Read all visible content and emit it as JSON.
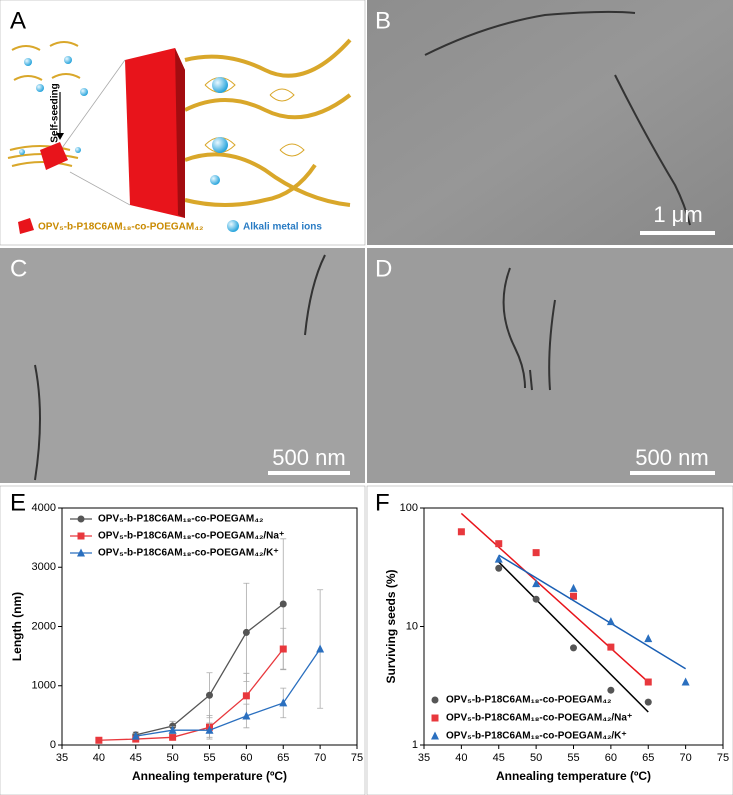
{
  "panel_labels": [
    "A",
    "B",
    "C",
    "D",
    "E",
    "F"
  ],
  "scale_bars": [
    "1 μm",
    "500 nm",
    "500 nm"
  ],
  "schematic": {
    "step": "Self-seeding",
    "legend_polymer": "OPV₅-b-P18C6AM₁₈-co-POEGAM₄₂",
    "legend_ions": "Alkali metal ions"
  },
  "chart_data": [
    {
      "type": "line",
      "xlabel": "Annealing temperature (ºC)",
      "ylabel": "Length (nm)",
      "xlim": [
        35,
        75
      ],
      "xticks": [
        35,
        40,
        45,
        50,
        55,
        60,
        65,
        70,
        75
      ],
      "ylim": [
        0,
        4000
      ],
      "yticks": [
        0,
        1000,
        2000,
        3000,
        4000
      ],
      "legend": "upper left",
      "series": [
        {
          "name": "OPV₅-b-P18C6AM₁₈-co-POEGAM₄₂",
          "color": "#555555",
          "marker": "circle",
          "x": [
            45,
            50,
            55,
            60,
            65
          ],
          "values": [
            170,
            320,
            840,
            1900,
            2380
          ],
          "errors": [
            50,
            80,
            380,
            830,
            1100
          ]
        },
        {
          "name": "OPV₅-b-P18C6AM₁₈-co-POEGAM₄₂/Na⁺",
          "color": "#e8383d",
          "marker": "square",
          "x": [
            40,
            45,
            50,
            55,
            60,
            65
          ],
          "values": [
            80,
            100,
            130,
            300,
            830,
            1620
          ],
          "errors": [
            20,
            30,
            40,
            200,
            380,
            350
          ]
        },
        {
          "name": "OPV₅-b-P18C6AM₁₈-co-POEGAM₄₂/K⁺",
          "color": "#2a6fbf",
          "marker": "triangle",
          "x": [
            45,
            50,
            55,
            60,
            65,
            70
          ],
          "values": [
            150,
            250,
            250,
            490,
            710,
            1620
          ],
          "errors": [
            40,
            60,
            120,
            200,
            250,
            1000
          ]
        }
      ]
    },
    {
      "type": "scatter",
      "xlabel": "Annealing temperature (ºC)",
      "ylabel": "Surviving seeds (%)",
      "xlim": [
        35,
        75
      ],
      "xticks": [
        35,
        40,
        45,
        50,
        55,
        60,
        65,
        70,
        75
      ],
      "ylim": [
        1,
        100
      ],
      "yticks": [
        1,
        10,
        100
      ],
      "log_y": true,
      "legend": "lower left",
      "series": [
        {
          "name": "OPV₅-b-P18C6AM₁₈-co-POEGAM₄₂",
          "color": "#555555",
          "line_color": "#000000",
          "marker": "circle",
          "x": [
            45,
            50,
            55,
            60,
            65
          ],
          "values": [
            31,
            17,
            6.6,
            2.9,
            2.3
          ],
          "fit": {
            "x": [
              45,
              65
            ],
            "values": [
              35,
              1.9
            ]
          }
        },
        {
          "name": "OPV₅-b-P18C6AM₁₈-co-POEGAM₄₂/Na⁺",
          "color": "#e8383d",
          "line_color": "#e8141b",
          "marker": "square",
          "x": [
            40,
            45,
            50,
            55,
            60,
            65
          ],
          "values": [
            63,
            50,
            42,
            18,
            6.7,
            3.4
          ],
          "fit": {
            "x": [
              40,
              65
            ],
            "values": [
              90,
              3.4
            ]
          }
        },
        {
          "name": "OPV₅-b-P18C6AM₁₈-co-POEGAM₄₂/K⁺",
          "color": "#2a6fbf",
          "line_color": "#1a5fb4",
          "marker": "triangle",
          "x": [
            45,
            50,
            55,
            60,
            65,
            70
          ],
          "values": [
            37,
            23,
            21,
            11,
            7.9,
            3.4
          ],
          "fit": {
            "x": [
              45,
              70
            ],
            "values": [
              40,
              4.4
            ]
          }
        }
      ]
    }
  ]
}
